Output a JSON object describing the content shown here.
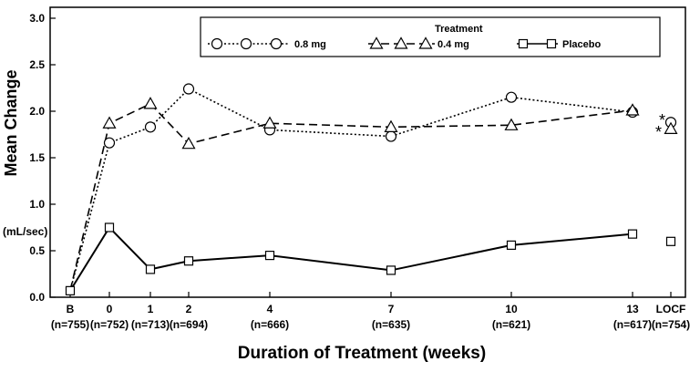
{
  "chart_data": {
    "type": "line",
    "xlabel": "Duration of Treatment (weeks)",
    "ylabel": "Mean Change",
    "yunit": "(mL/sec)",
    "ylim": [
      0,
      3.0
    ],
    "yticks": [
      "0.0",
      "0.5",
      "1.0",
      "1.5",
      "2.0",
      "2.5",
      "3.0"
    ],
    "x_ticks": [
      {
        "label": "B",
        "n": "(n=755)"
      },
      {
        "label": "0",
        "n": "(n=752)"
      },
      {
        "label": "1",
        "n": "(n=713)"
      },
      {
        "label": "2",
        "n": "(n=694)"
      },
      {
        "label": "4",
        "n": "(n=666)"
      },
      {
        "label": "7",
        "n": "(n=635)"
      },
      {
        "label": "10",
        "n": "(n=621)"
      },
      {
        "label": "13",
        "n": "(n=617)"
      },
      {
        "label": "LOCF",
        "n": "(n=754)"
      }
    ],
    "legend": {
      "title": "Treatment",
      "placement": "top-right"
    },
    "series": [
      {
        "name": "0.8 mg",
        "marker": "circle",
        "dash": "dotted",
        "points": [
          {
            "x": "B",
            "y": 0.07
          },
          {
            "x": "0",
            "y": 1.66
          },
          {
            "x": "1",
            "y": 1.83
          },
          {
            "x": "2",
            "y": 2.24
          },
          {
            "x": "4",
            "y": 1.8
          },
          {
            "x": "7",
            "y": 1.73
          },
          {
            "x": "10",
            "y": 2.15
          },
          {
            "x": "13",
            "y": 1.99
          }
        ],
        "locf": 1.88
      },
      {
        "name": "0.4 mg",
        "marker": "triangle",
        "dash": "dashed",
        "points": [
          {
            "x": "B",
            "y": 0.07
          },
          {
            "x": "0",
            "y": 1.87
          },
          {
            "x": "1",
            "y": 2.08
          },
          {
            "x": "2",
            "y": 1.65
          },
          {
            "x": "4",
            "y": 1.87
          },
          {
            "x": "7",
            "y": 1.83
          },
          {
            "x": "10",
            "y": 1.85
          },
          {
            "x": "13",
            "y": 2.01
          }
        ],
        "locf": 1.81
      },
      {
        "name": "Placebo",
        "marker": "square",
        "dash": "solid",
        "points": [
          {
            "x": "B",
            "y": 0.07
          },
          {
            "x": "0",
            "y": 0.75
          },
          {
            "x": "1",
            "y": 0.3
          },
          {
            "x": "2",
            "y": 0.39
          },
          {
            "x": "4",
            "y": 0.45
          },
          {
            "x": "7",
            "y": 0.29
          },
          {
            "x": "10",
            "y": 0.56
          },
          {
            "x": "13",
            "y": 0.68
          }
        ],
        "locf": 0.6
      }
    ],
    "annotations": [
      "*",
      "*"
    ]
  }
}
